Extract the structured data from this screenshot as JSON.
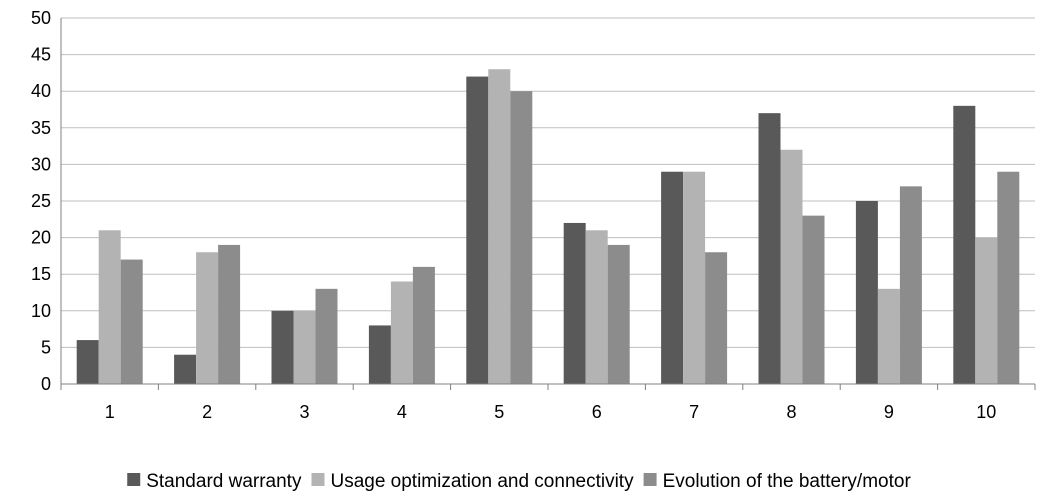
{
  "chart_data": {
    "type": "bar",
    "categories": [
      "1",
      "2",
      "3",
      "4",
      "5",
      "6",
      "7",
      "8",
      "9",
      "10"
    ],
    "series": [
      {
        "name": "Standard warranty",
        "color": "#595959",
        "values": [
          6,
          4,
          10,
          8,
          42,
          22,
          29,
          37,
          25,
          38
        ]
      },
      {
        "name": "Usage optimization and connectivity",
        "color": "#b3b3b3",
        "values": [
          21,
          18,
          10,
          14,
          43,
          21,
          29,
          32,
          13,
          20
        ]
      },
      {
        "name": "Evolution of the battery/motor",
        "color": "#8c8c8c",
        "values": [
          17,
          19,
          13,
          16,
          40,
          19,
          18,
          23,
          27,
          29
        ]
      }
    ],
    "title": "",
    "xlabel": "",
    "ylabel": "",
    "ylim": [
      0,
      50
    ],
    "yticks": [
      "0",
      "5",
      "10",
      "15",
      "20",
      "25",
      "30",
      "35",
      "40",
      "45",
      "50"
    ],
    "grid": true,
    "legend_position": "bottom"
  }
}
